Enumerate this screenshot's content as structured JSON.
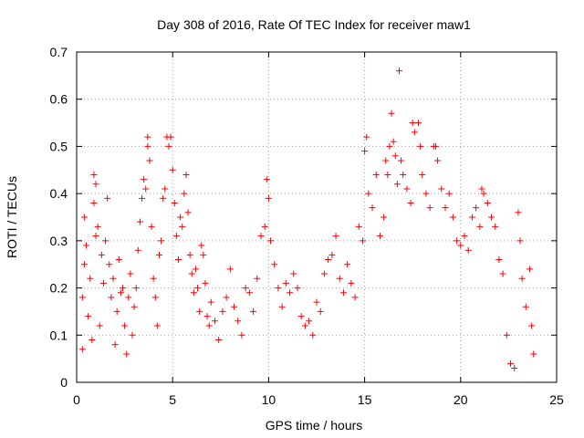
{
  "chart_data": {
    "type": "scatter",
    "title": "Day 308 of 2016, Rate Of TEC Index for receiver maw1",
    "xlabel": "GPS time / hours",
    "ylabel": "ROTI / TECUs",
    "xlim": [
      0,
      25
    ],
    "ylim": [
      0,
      0.7
    ],
    "xticks": [
      0,
      5,
      10,
      15,
      20,
      25
    ],
    "yticks": [
      0,
      0.1,
      0.2,
      0.3,
      0.4,
      0.5,
      0.6,
      0.7
    ],
    "xtick_labels": [
      "0",
      "5",
      "10",
      "15",
      "20",
      "25"
    ],
    "ytick_labels": [
      "0",
      "0.1",
      "0.2",
      "0.3",
      "0.4",
      "0.5",
      "0.6",
      "0.7"
    ],
    "grid": true,
    "marker": "+",
    "color": "#ff0000",
    "series": [
      {
        "points": [
          [
            0.3,
            0.07
          ],
          [
            0.3,
            0.18
          ],
          [
            0.4,
            0.25
          ],
          [
            0.4,
            0.35
          ],
          [
            0.5,
            0.29
          ],
          [
            0.6,
            0.14
          ],
          [
            0.7,
            0.22
          ],
          [
            0.8,
            0.09
          ],
          [
            0.9,
            0.44
          ],
          [
            0.9,
            0.38
          ],
          [
            1.0,
            0.31
          ],
          [
            1.0,
            0.42
          ],
          [
            1.1,
            0.33
          ],
          [
            1.2,
            0.12
          ],
          [
            1.3,
            0.27
          ],
          [
            1.4,
            0.21
          ],
          [
            1.5,
            0.3
          ],
          [
            1.6,
            0.39
          ],
          [
            1.7,
            0.25
          ],
          [
            1.8,
            0.18
          ],
          [
            1.9,
            0.22
          ],
          [
            2.0,
            0.08
          ],
          [
            2.1,
            0.15
          ],
          [
            2.2,
            0.26
          ],
          [
            2.3,
            0.19
          ],
          [
            2.4,
            0.2
          ],
          [
            2.5,
            0.12
          ],
          [
            2.6,
            0.06
          ],
          [
            2.7,
            0.18
          ],
          [
            2.8,
            0.23
          ],
          [
            2.9,
            0.1
          ],
          [
            3.0,
            0.16
          ],
          [
            3.1,
            0.2
          ],
          [
            3.2,
            0.28
          ],
          [
            3.3,
            0.34
          ],
          [
            3.4,
            0.39
          ],
          [
            3.5,
            0.43
          ],
          [
            3.6,
            0.41
          ],
          [
            3.7,
            0.52
          ],
          [
            3.7,
            0.5
          ],
          [
            3.8,
            0.47
          ],
          [
            3.9,
            0.33
          ],
          [
            4.0,
            0.22
          ],
          [
            4.1,
            0.18
          ],
          [
            4.2,
            0.12
          ],
          [
            4.3,
            0.27
          ],
          [
            4.4,
            0.3
          ],
          [
            4.5,
            0.39
          ],
          [
            4.6,
            0.41
          ],
          [
            4.7,
            0.52
          ],
          [
            4.8,
            0.5
          ],
          [
            4.9,
            0.52
          ],
          [
            5.0,
            0.45
          ],
          [
            5.1,
            0.38
          ],
          [
            5.2,
            0.31
          ],
          [
            5.3,
            0.26
          ],
          [
            5.4,
            0.35
          ],
          [
            5.5,
            0.33
          ],
          [
            5.6,
            0.4
          ],
          [
            5.7,
            0.44
          ],
          [
            5.8,
            0.36
          ],
          [
            5.9,
            0.27
          ],
          [
            6.0,
            0.23
          ],
          [
            6.1,
            0.19
          ],
          [
            6.2,
            0.24
          ],
          [
            6.3,
            0.2
          ],
          [
            6.4,
            0.15
          ],
          [
            6.5,
            0.29
          ],
          [
            6.6,
            0.27
          ],
          [
            6.7,
            0.21
          ],
          [
            6.8,
            0.14
          ],
          [
            6.9,
            0.12
          ],
          [
            7.0,
            0.17
          ],
          [
            7.2,
            0.13
          ],
          [
            7.4,
            0.09
          ],
          [
            7.6,
            0.15
          ],
          [
            7.8,
            0.18
          ],
          [
            8.0,
            0.24
          ],
          [
            8.2,
            0.16
          ],
          [
            8.4,
            0.13
          ],
          [
            8.6,
            0.1
          ],
          [
            8.8,
            0.2
          ],
          [
            9.0,
            0.19
          ],
          [
            9.2,
            0.15
          ],
          [
            9.4,
            0.22
          ],
          [
            9.6,
            0.31
          ],
          [
            9.8,
            0.33
          ],
          [
            9.9,
            0.43
          ],
          [
            10.0,
            0.39
          ],
          [
            10.1,
            0.3
          ],
          [
            10.3,
            0.25
          ],
          [
            10.5,
            0.2
          ],
          [
            10.7,
            0.16
          ],
          [
            10.9,
            0.21
          ],
          [
            11.1,
            0.19
          ],
          [
            11.3,
            0.23
          ],
          [
            11.5,
            0.2
          ],
          [
            11.7,
            0.14
          ],
          [
            11.9,
            0.12
          ],
          [
            12.1,
            0.13
          ],
          [
            12.3,
            0.1
          ],
          [
            12.5,
            0.17
          ],
          [
            12.7,
            0.15
          ],
          [
            12.9,
            0.23
          ],
          [
            13.1,
            0.26
          ],
          [
            13.3,
            0.27
          ],
          [
            13.5,
            0.31
          ],
          [
            13.7,
            0.22
          ],
          [
            13.9,
            0.19
          ],
          [
            14.1,
            0.25
          ],
          [
            14.3,
            0.21
          ],
          [
            14.5,
            0.18
          ],
          [
            14.7,
            0.33
          ],
          [
            14.9,
            0.3
          ],
          [
            15.0,
            0.49
          ],
          [
            15.1,
            0.52
          ],
          [
            15.2,
            0.4
          ],
          [
            15.4,
            0.37
          ],
          [
            15.6,
            0.44
          ],
          [
            15.8,
            0.31
          ],
          [
            16.0,
            0.35
          ],
          [
            16.1,
            0.47
          ],
          [
            16.2,
            0.44
          ],
          [
            16.3,
            0.5
          ],
          [
            16.4,
            0.57
          ],
          [
            16.5,
            0.51
          ],
          [
            16.6,
            0.48
          ],
          [
            16.7,
            0.42
          ],
          [
            16.8,
            0.66
          ],
          [
            16.9,
            0.47
          ],
          [
            17.0,
            0.44
          ],
          [
            17.2,
            0.41
          ],
          [
            17.4,
            0.38
          ],
          [
            17.5,
            0.55
          ],
          [
            17.6,
            0.53
          ],
          [
            17.8,
            0.55
          ],
          [
            17.9,
            0.5
          ],
          [
            18.0,
            0.44
          ],
          [
            18.2,
            0.4
          ],
          [
            18.4,
            0.37
          ],
          [
            18.6,
            0.5
          ],
          [
            18.7,
            0.5
          ],
          [
            18.8,
            0.47
          ],
          [
            19.0,
            0.41
          ],
          [
            19.2,
            0.37
          ],
          [
            19.4,
            0.4
          ],
          [
            19.6,
            0.35
          ],
          [
            19.8,
            0.3
          ],
          [
            20.0,
            0.29
          ],
          [
            20.2,
            0.31
          ],
          [
            20.4,
            0.28
          ],
          [
            20.6,
            0.35
          ],
          [
            20.8,
            0.37
          ],
          [
            21.0,
            0.33
          ],
          [
            21.1,
            0.41
          ],
          [
            21.2,
            0.4
          ],
          [
            21.4,
            0.38
          ],
          [
            21.6,
            0.35
          ],
          [
            21.8,
            0.33
          ],
          [
            22.0,
            0.26
          ],
          [
            22.2,
            0.23
          ],
          [
            22.4,
            0.1
          ],
          [
            22.6,
            0.04
          ],
          [
            22.8,
            0.03
          ],
          [
            23.0,
            0.36
          ],
          [
            23.1,
            0.3
          ],
          [
            23.2,
            0.22
          ],
          [
            23.4,
            0.16
          ],
          [
            23.6,
            0.24
          ],
          [
            23.7,
            0.12
          ],
          [
            23.8,
            0.06
          ]
        ]
      }
    ]
  }
}
